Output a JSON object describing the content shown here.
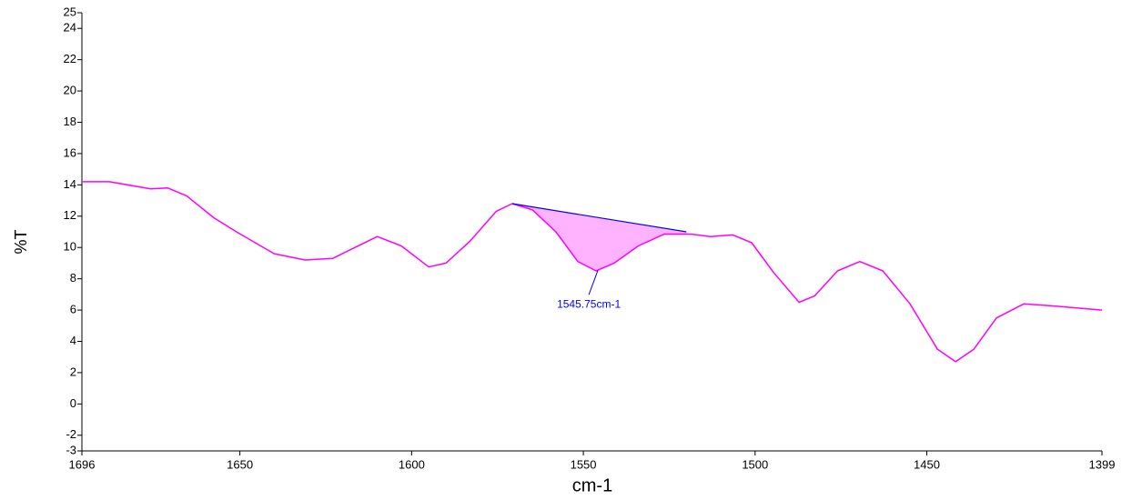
{
  "chart_data": {
    "type": "line",
    "xlabel": "cm-1",
    "ylabel": "%T",
    "xlim": [
      1696,
      1399
    ],
    "ylim": [
      -3,
      25
    ],
    "xticks": [
      1696,
      1650,
      1600,
      1550,
      1500,
      1450,
      1399
    ],
    "yticks": [
      25,
      24,
      22,
      20,
      18,
      16,
      14,
      12,
      10,
      8,
      6,
      4,
      2,
      0,
      -2,
      -3
    ],
    "series": [
      {
        "color": "#ff00ff",
        "x": [
          1696,
          1688,
          1676,
          1671,
          1665.5,
          1657.6,
          1651,
          1640,
          1631,
          1623,
          1616.5,
          1610,
          1603,
          1595,
          1590,
          1583,
          1575.4,
          1570.7,
          1564.8,
          1558,
          1551.6,
          1546.3,
          1541,
          1534,
          1526.5,
          1518.5,
          1513,
          1506.5,
          1501,
          1494.6,
          1487.2,
          1482.7,
          1476,
          1469.5,
          1462.8,
          1454.9,
          1446.9,
          1441.6,
          1436.3,
          1429.7,
          1421.7,
          1412.5,
          1399
        ],
        "values": [
          14.2,
          14.2,
          13.75,
          13.8,
          13.3,
          11.9,
          11,
          9.6,
          9.2,
          9.3,
          10,
          10.7,
          10.1,
          8.75,
          9,
          10.4,
          12.3,
          12.8,
          12.4,
          11,
          9.1,
          8.5,
          9,
          10.1,
          10.85,
          10.85,
          10.7,
          10.8,
          10.3,
          8.4,
          6.5,
          6.9,
          8.5,
          9.1,
          8.5,
          6.4,
          3.5,
          2.7,
          3.5,
          5.5,
          6.4,
          6.25,
          6.0
        ]
      }
    ],
    "annotation": {
      "label": "1545.75cm-1",
      "x": 1545.75,
      "color": "#0000ff",
      "fill": "#ffb3ff",
      "baseline": [
        [
          1570.7,
          12.8
        ],
        [
          1520,
          11.0
        ]
      ]
    }
  }
}
